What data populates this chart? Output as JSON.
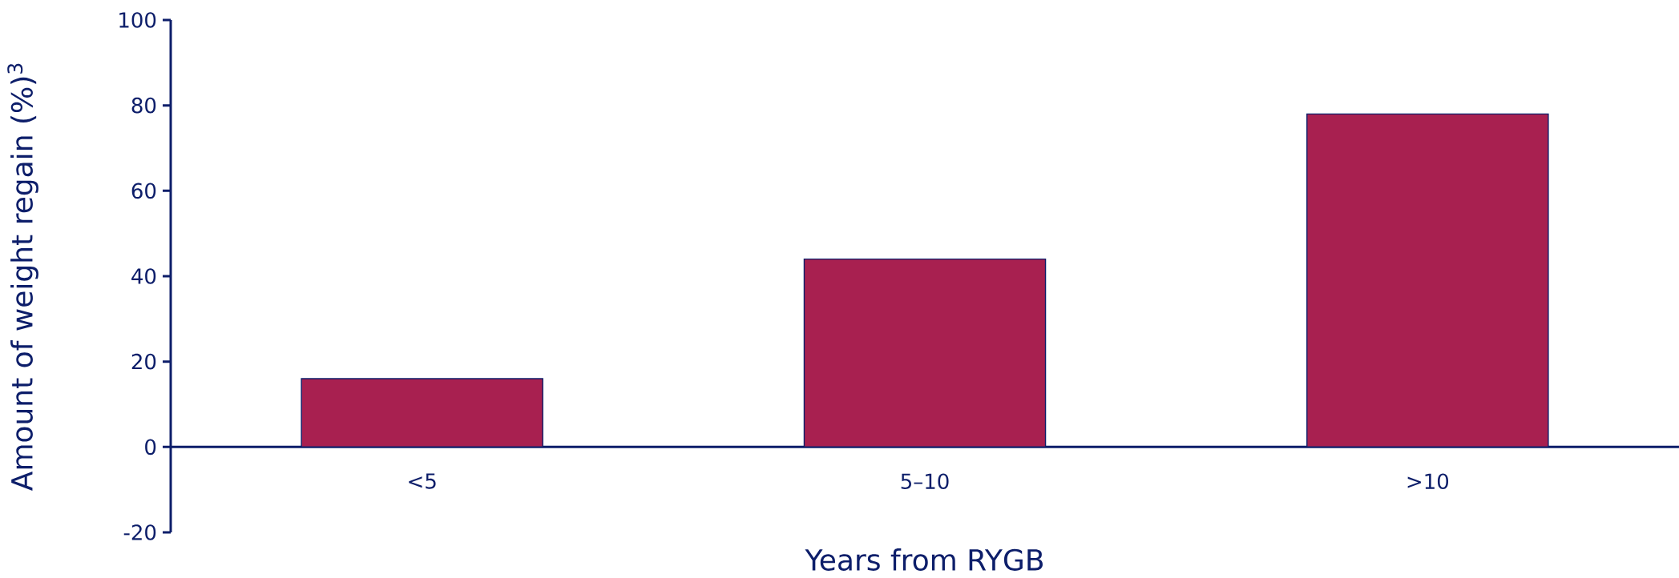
{
  "chart_data": {
    "type": "bar",
    "xlabel": "Years from RYGB",
    "ylabel": "Amount of weight regain (%)$^{3}$",
    "categories": [
      "<5",
      "5–10",
      ">10"
    ],
    "values": [
      16,
      44,
      78
    ],
    "color": "#a82050",
    "ylim": [
      -20,
      100
    ],
    "yticks": [
      -20,
      0,
      20,
      40,
      60,
      80,
      100
    ]
  }
}
